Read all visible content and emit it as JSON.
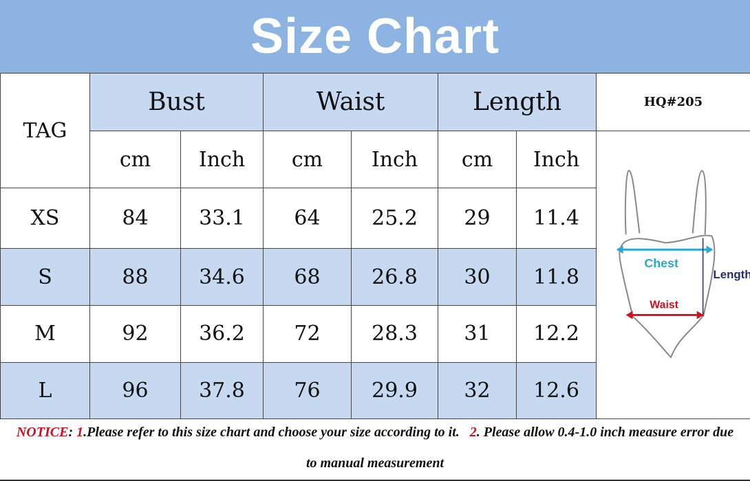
{
  "title": "Size Chart",
  "code": "HQ#205",
  "headers": {
    "tag": "TAG",
    "groups": [
      "Bust",
      "Waist",
      "Length"
    ],
    "units": [
      "cm",
      "Inch",
      "cm",
      "Inch",
      "cm",
      "Inch"
    ]
  },
  "rows": [
    {
      "tag": "XS",
      "values": [
        "84",
        "33.1",
        "64",
        "25.2",
        "29",
        "11.4"
      ]
    },
    {
      "tag": "S",
      "values": [
        "88",
        "34.6",
        "68",
        "26.8",
        "30",
        "11.8"
      ]
    },
    {
      "tag": "M",
      "values": [
        "92",
        "36.2",
        "72",
        "28.3",
        "31",
        "12.2"
      ]
    },
    {
      "tag": "L",
      "values": [
        "96",
        "37.8",
        "76",
        "29.9",
        "32",
        "12.6"
      ]
    }
  ],
  "diagram": {
    "chest": "Chest",
    "waist": "Waist",
    "length": "Length"
  },
  "notice": {
    "label": "NOTICE",
    "n1": "1",
    "t1": ".Please refer to this size chart and choose your size according to it.",
    "n2": "2",
    "t2": ". Please allow 0.4-1.0 inch measure error due",
    "t3": "to manual measurement"
  },
  "colors": {
    "banner": "#8db3e2",
    "band": "#c6d9f1",
    "notice": "#d01020"
  }
}
